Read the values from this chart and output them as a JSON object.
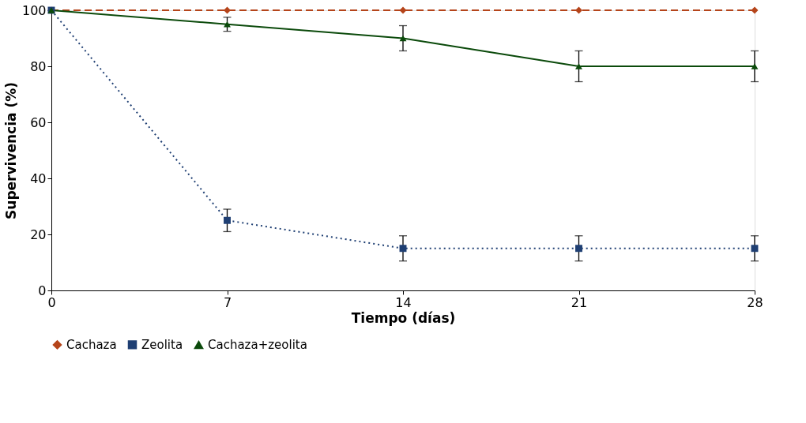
{
  "chart_data": {
    "type": "line",
    "xlabel": "Tiempo  (días)",
    "ylabel": "Supervivencia (%)",
    "x": [
      0,
      7,
      14,
      21,
      28
    ],
    "xlim": [
      0,
      28
    ],
    "xticks": [
      0,
      7,
      14,
      21,
      28
    ],
    "ylim": [
      0,
      100
    ],
    "yticks": [
      0,
      20,
      40,
      60,
      80,
      100
    ],
    "grid": false,
    "legend": "bottom",
    "series": [
      {
        "name": "Cachaza",
        "color": "#b5441a",
        "marker": "diamond",
        "line_style": "dashed",
        "values": [
          100,
          100,
          100,
          100,
          100
        ]
      },
      {
        "name": "Zeolita",
        "color": "#1f3f73",
        "marker": "square",
        "line_style": "dotted",
        "values": [
          100,
          25,
          15,
          15,
          15
        ],
        "errors": [
          null,
          4,
          4.5,
          4.5,
          4.5
        ]
      },
      {
        "name": "Cachaza+zeolita",
        "color": "#0b4a0b",
        "marker": "triangle",
        "line_style": "solid",
        "values": [
          100,
          95,
          90,
          80,
          80
        ],
        "errors": [
          null,
          2.5,
          4.5,
          5.5,
          5.5
        ]
      }
    ]
  }
}
